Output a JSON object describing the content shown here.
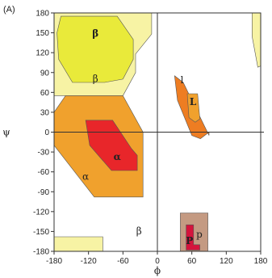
{
  "panel_label": "(A)",
  "colors": {
    "pale_yellow": "#f7f3a4",
    "yellow": "#e9ea3a",
    "orange": "#f0a12d",
    "red": "#e8262a",
    "dark_orange": "#ee7d22",
    "brown": "#c49a82",
    "crimson": "#d4143c"
  },
  "chart_data": {
    "type": "area",
    "title": "",
    "xlabel": "ϕ",
    "ylabel": "ψ",
    "xlim": [
      -180,
      180
    ],
    "ylim": [
      -180,
      180
    ],
    "xticks": [
      -180,
      -120,
      -60,
      0,
      60,
      120,
      180
    ],
    "yticks": [
      180,
      150,
      120,
      90,
      60,
      30,
      0,
      -30,
      -60,
      -90,
      -120,
      -150,
      -180
    ],
    "grid": false,
    "zero_lines": true,
    "regions": [
      {
        "label": "",
        "level": "generous",
        "color": "pale_yellow",
        "points": [
          [
            -180,
            180
          ],
          [
            -10,
            180
          ],
          [
            -10,
            148
          ],
          [
            -38,
            118
          ],
          [
            -38,
            90
          ],
          [
            -60,
            55
          ],
          [
            -180,
            55
          ]
        ]
      },
      {
        "label": "β",
        "level": "core",
        "color": "yellow",
        "points": [
          [
            -168,
            175
          ],
          [
            -70,
            175
          ],
          [
            -42,
            140
          ],
          [
            -42,
            110
          ],
          [
            -60,
            80
          ],
          [
            -92,
            75
          ],
          [
            -148,
            75
          ],
          [
            -172,
            110
          ],
          [
            -175,
            150
          ]
        ]
      },
      {
        "label": "",
        "level": "generous",
        "color": "pale_yellow",
        "points": [
          [
            165,
            180
          ],
          [
            180,
            180
          ],
          [
            180,
            100
          ],
          [
            175,
            98
          ],
          [
            165,
            145
          ]
        ]
      },
      {
        "label": "",
        "level": "generous",
        "color": "pale_yellow",
        "points": [
          [
            -180,
            -158
          ],
          [
            -95,
            -158
          ],
          [
            -95,
            -180
          ],
          [
            -180,
            -180
          ]
        ]
      },
      {
        "label": "α",
        "level": "allowed",
        "color": "orange",
        "points": [
          [
            -160,
            55
          ],
          [
            -60,
            55
          ],
          [
            -25,
            0
          ],
          [
            -25,
            -98
          ],
          [
            -110,
            -98
          ],
          [
            -180,
            -20
          ],
          [
            -180,
            30
          ]
        ]
      },
      {
        "label": "α",
        "level": "core",
        "color": "red",
        "points": [
          [
            -125,
            18
          ],
          [
            -78,
            18
          ],
          [
            -45,
            -25
          ],
          [
            -35,
            -35
          ],
          [
            -35,
            -58
          ],
          [
            -80,
            -58
          ],
          [
            -118,
            -20
          ]
        ]
      },
      {
        "label": "l",
        "level": "allowed",
        "color": "dark_orange",
        "points": [
          [
            30,
            85
          ],
          [
            45,
            75
          ],
          [
            90,
            -5
          ],
          [
            90,
            0
          ],
          [
            75,
            -10
          ],
          [
            60,
            -5
          ],
          [
            35,
            48
          ]
        ]
      },
      {
        "label": "L",
        "level": "core",
        "color": "orange",
        "points": [
          [
            52,
            58
          ],
          [
            70,
            58
          ],
          [
            74,
            20
          ],
          [
            66,
            15
          ],
          [
            55,
            22
          ]
        ]
      },
      {
        "label": "p",
        "level": "allowed",
        "color": "brown",
        "points": [
          [
            40,
            -122
          ],
          [
            88,
            -122
          ],
          [
            88,
            -180
          ],
          [
            40,
            -180
          ]
        ]
      },
      {
        "label": "P",
        "level": "core",
        "color": "crimson",
        "points": [
          [
            50,
            -140
          ],
          [
            63,
            -140
          ],
          [
            63,
            -170
          ],
          [
            74,
            -170
          ],
          [
            74,
            -178
          ],
          [
            50,
            -178
          ]
        ]
      }
    ],
    "labels": [
      {
        "text": "β",
        "at": [
          -108,
          148
        ],
        "bold": true
      },
      {
        "text": "β",
        "at": [
          -108,
          80
        ],
        "bold": false
      },
      {
        "text": "α",
        "at": [
          -70,
          -38
        ],
        "bold": true
      },
      {
        "text": "α",
        "at": [
          -125,
          -68
        ],
        "bold": false
      },
      {
        "text": "β",
        "at": [
          -32,
          -150
        ],
        "bold": false
      },
      {
        "text": "l",
        "at": [
          43,
          78
        ],
        "bold": false
      },
      {
        "text": "L",
        "at": [
          62,
          45
        ],
        "bold": true
      },
      {
        "text": "p",
        "at": [
          73,
          -155
        ],
        "bold": false
      },
      {
        "text": "P",
        "at": [
          56,
          -165
        ],
        "bold": true
      }
    ]
  }
}
